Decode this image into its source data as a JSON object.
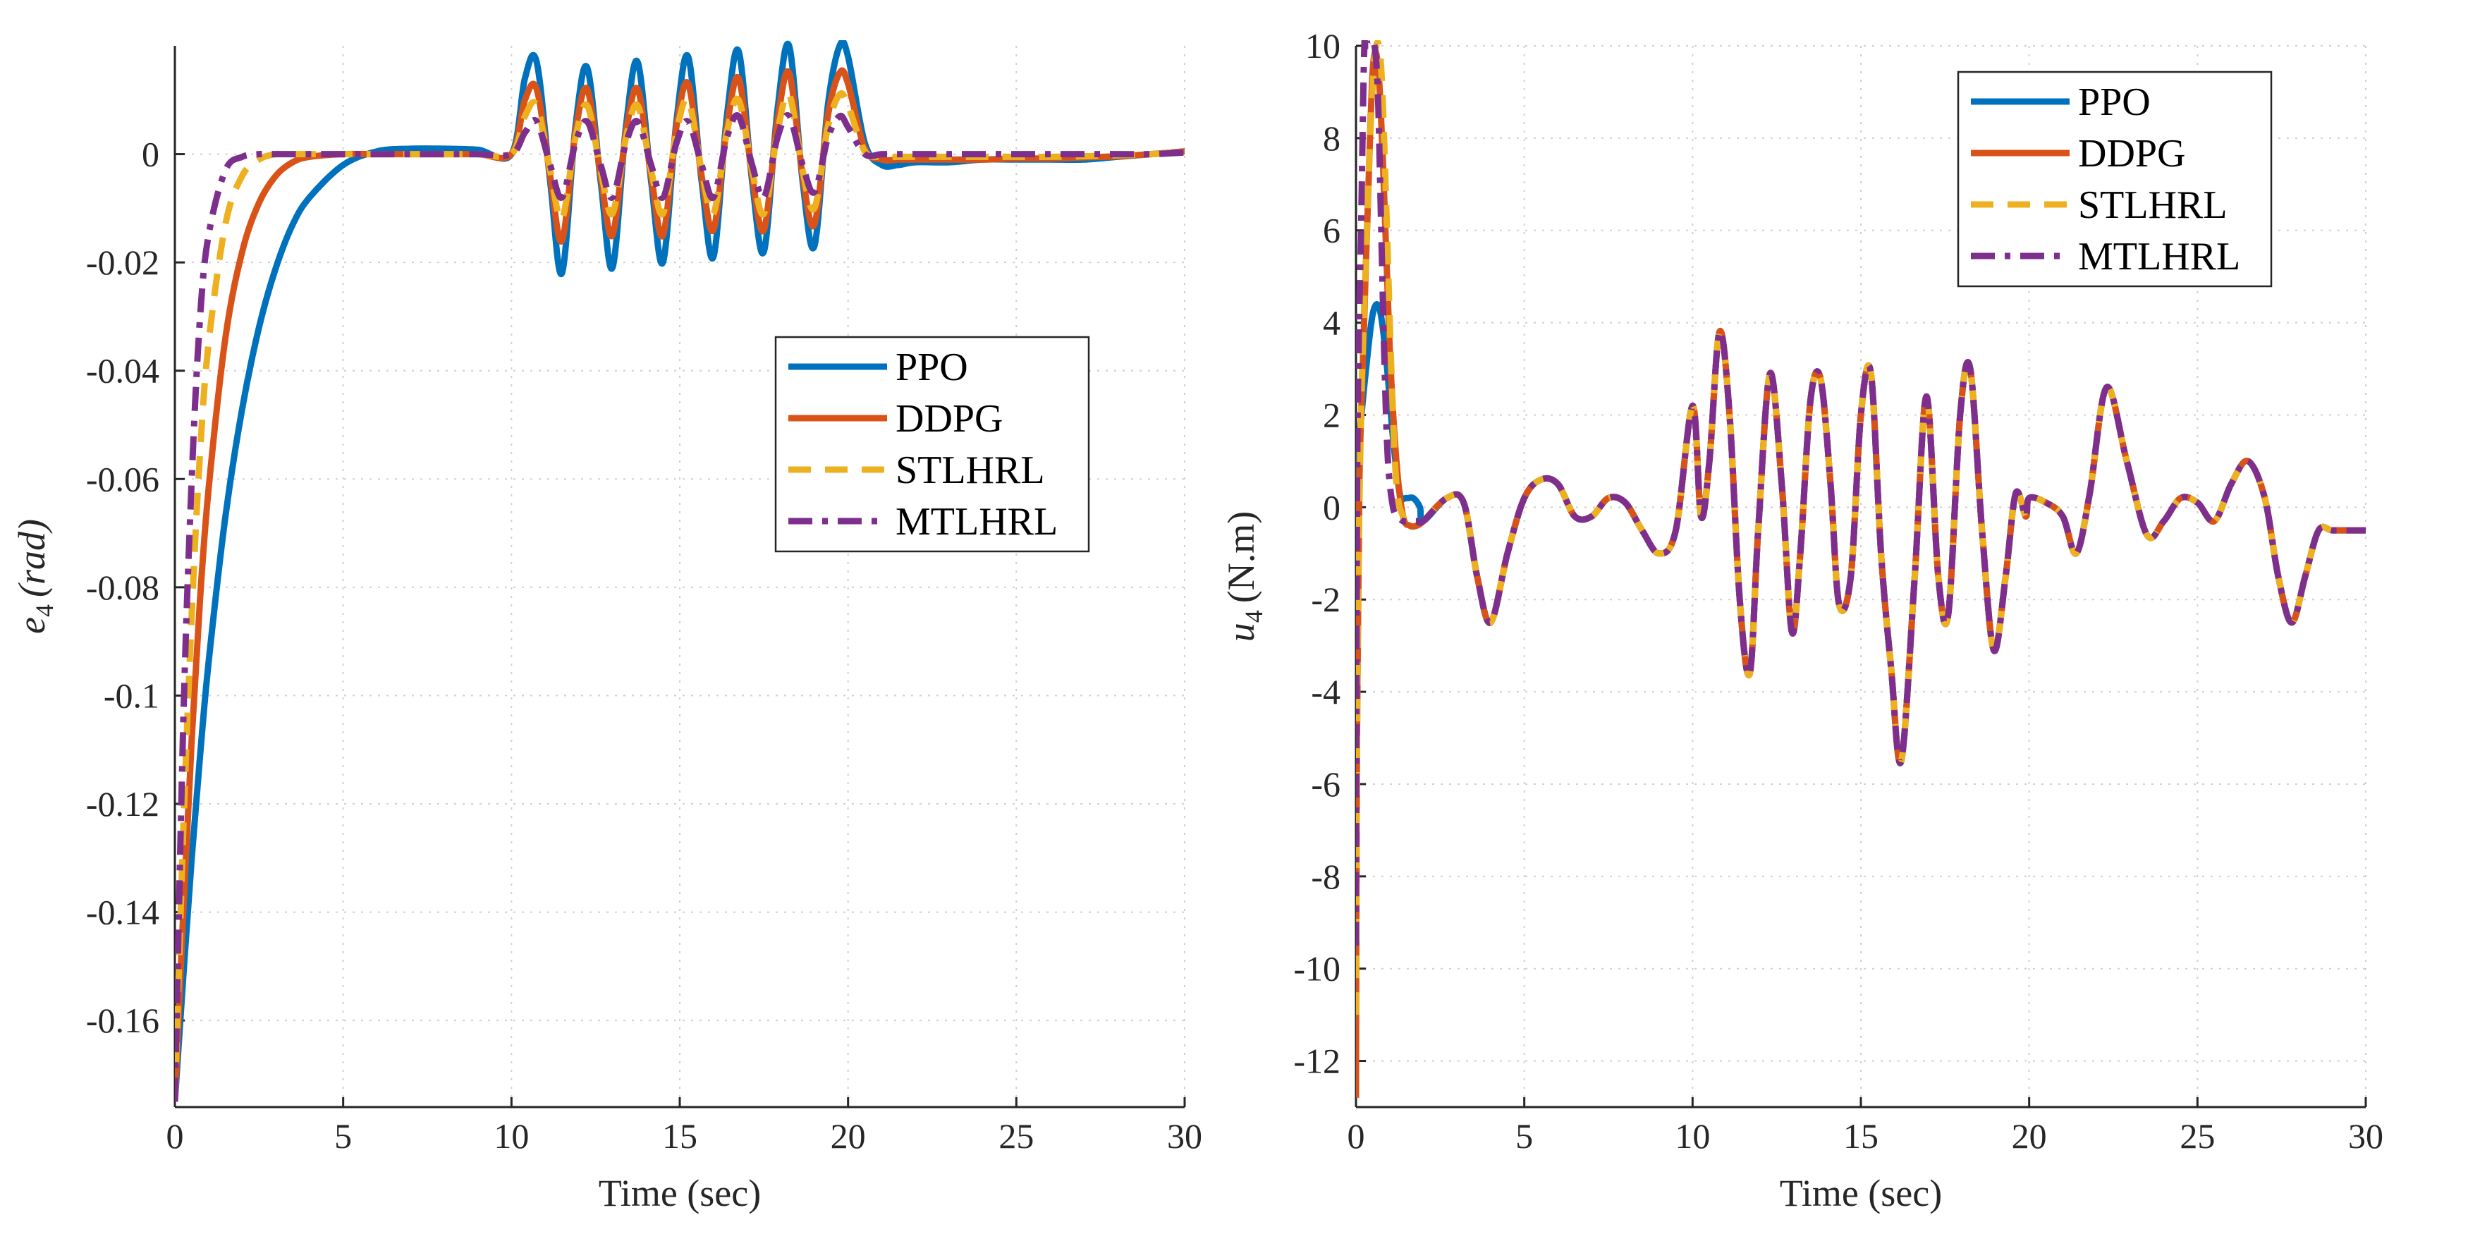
{
  "chart_data": [
    {
      "id": "error",
      "type": "line",
      "title": "",
      "xlabel": "Time (sec)",
      "ylabel_symbol": "e",
      "ylabel_subscript": "4",
      "ylabel_unit": "(rad)",
      "xlim": [
        0,
        30
      ],
      "ylim": [
        -0.176,
        0.02
      ],
      "x_ticks": [
        0,
        5,
        10,
        15,
        20,
        25,
        30
      ],
      "x_tick_labels": [
        "0",
        "5",
        "10",
        "15",
        "20",
        "25",
        "30"
      ],
      "y_ticks": [
        -0.16,
        -0.14,
        -0.12,
        -0.1,
        -0.08,
        -0.06,
        -0.04,
        -0.02,
        0
      ],
      "y_tick_labels": [
        "-0.16",
        "-0.14",
        "-0.12",
        "-0.1",
        "-0.08",
        "-0.06",
        "-0.04",
        "-0.02",
        "0"
      ],
      "grid": true,
      "legend_position": "center-right",
      "series": [
        {
          "name": "PPO",
          "color": "#0072BD",
          "dash": "solid",
          "x": [
            0,
            0.25,
            0.5,
            0.75,
            1,
            1.5,
            2,
            2.5,
            3,
            3.5,
            4,
            5,
            6,
            7,
            8,
            9,
            10,
            10.4,
            10.75,
            11.15,
            11.5,
            11.9,
            12.25,
            12.65,
            13,
            13.4,
            13.75,
            14.15,
            14.5,
            14.9,
            15.25,
            15.65,
            16,
            16.4,
            16.75,
            17.15,
            17.5,
            17.9,
            18.25,
            18.65,
            19,
            19.4,
            19.75,
            20,
            20.5,
            21,
            21.5,
            22,
            23,
            24,
            25,
            26,
            27,
            28,
            29,
            30
          ],
          "y": [
            -0.175,
            -0.152,
            -0.13,
            -0.111,
            -0.094,
            -0.067,
            -0.047,
            -0.032,
            -0.021,
            -0.013,
            -0.008,
            -0.002,
            0.0005,
            0.001,
            0.001,
            0.0008,
            0,
            0.014,
            0.017,
            -0.005,
            -0.022,
            0.005,
            0.016,
            -0.005,
            -0.021,
            0.005,
            0.017,
            -0.005,
            -0.02,
            0.006,
            0.018,
            -0.005,
            -0.019,
            0.007,
            0.019,
            -0.005,
            -0.018,
            0.008,
            0.02,
            -0.005,
            -0.017,
            0.009,
            0.02,
            0.018,
            0.002,
            -0.002,
            -0.002,
            -0.0015,
            -0.0015,
            -0.001,
            -0.001,
            -0.001,
            -0.001,
            -0.0005,
            0,
            0.0005
          ]
        },
        {
          "name": "DDPG",
          "color": "#D95319",
          "dash": "solid",
          "x": [
            0,
            0.25,
            0.5,
            0.75,
            1,
            1.5,
            2,
            2.5,
            3,
            3.5,
            4,
            5,
            6,
            7,
            8,
            9,
            10,
            10.4,
            10.75,
            11.15,
            11.5,
            11.9,
            12.25,
            12.65,
            13,
            13.4,
            13.75,
            14.15,
            14.5,
            14.9,
            15.25,
            15.65,
            16,
            16.4,
            16.75,
            17.15,
            17.5,
            17.9,
            18.25,
            18.65,
            19,
            19.4,
            19.75,
            20,
            20.5,
            21,
            21.5,
            22,
            23,
            24,
            25,
            26,
            27,
            28,
            29,
            30
          ],
          "y": [
            -0.175,
            -0.14,
            -0.108,
            -0.082,
            -0.062,
            -0.034,
            -0.018,
            -0.009,
            -0.004,
            -0.0015,
            -0.0005,
            0,
            0,
            0,
            0,
            0,
            0,
            0.01,
            0.012,
            -0.004,
            -0.016,
            0.004,
            0.012,
            -0.004,
            -0.015,
            0.004,
            0.012,
            -0.004,
            -0.015,
            0.005,
            0.013,
            -0.004,
            -0.014,
            0.005,
            0.014,
            -0.004,
            -0.014,
            0.006,
            0.015,
            -0.004,
            -0.013,
            0.007,
            0.015,
            0.013,
            0.001,
            -0.001,
            -0.001,
            -0.001,
            -0.001,
            -0.001,
            -0.0008,
            -0.0008,
            -0.0006,
            -0.0004,
            0,
            0.0005
          ]
        },
        {
          "name": "STLHRL",
          "color": "#EDB120",
          "dash": "dashed",
          "x": [
            0,
            0.25,
            0.5,
            0.75,
            1,
            1.5,
            2,
            2.5,
            3,
            3.5,
            4,
            5,
            6,
            7,
            8,
            9,
            10,
            10.4,
            10.75,
            11.15,
            11.5,
            11.9,
            12.25,
            12.65,
            13,
            13.4,
            13.75,
            14.15,
            14.5,
            14.9,
            15.25,
            15.65,
            16,
            16.4,
            16.75,
            17.15,
            17.5,
            17.9,
            18.25,
            18.65,
            19,
            19.4,
            19.75,
            20,
            20.5,
            21,
            21.5,
            22,
            23,
            24,
            25,
            26,
            27,
            28,
            29,
            30
          ],
          "y": [
            -0.175,
            -0.125,
            -0.085,
            -0.055,
            -0.035,
            -0.013,
            -0.004,
            -0.001,
            0,
            0,
            0,
            0,
            0,
            0,
            0,
            0,
            0,
            0.007,
            0.009,
            -0.003,
            -0.012,
            0.003,
            0.009,
            -0.003,
            -0.011,
            0.003,
            0.009,
            -0.003,
            -0.011,
            0.004,
            0.01,
            -0.003,
            -0.011,
            0.004,
            0.01,
            -0.003,
            -0.011,
            0.004,
            0.011,
            -0.003,
            -0.01,
            0.005,
            0.011,
            0.009,
            0.0005,
            -0.0005,
            -0.0005,
            -0.0005,
            -0.0005,
            -0.0005,
            -0.0005,
            -0.0005,
            -0.0004,
            -0.0002,
            0,
            0.0005
          ]
        },
        {
          "name": "MTLHRL",
          "color": "#7E2F8E",
          "dash": "dashdot",
          "x": [
            0,
            0.25,
            0.5,
            0.75,
            1,
            1.5,
            2,
            2.5,
            3,
            3.5,
            4,
            5,
            6,
            7,
            8,
            9,
            10,
            10.4,
            10.75,
            11.15,
            11.5,
            11.9,
            12.25,
            12.65,
            13,
            13.4,
            13.75,
            14.15,
            14.5,
            14.9,
            15.25,
            15.65,
            16,
            16.4,
            16.75,
            17.15,
            17.5,
            17.9,
            18.25,
            18.65,
            19,
            19.4,
            19.75,
            20,
            20.5,
            21,
            21.5,
            22,
            23,
            24,
            25,
            26,
            27,
            28,
            29,
            30
          ],
          "y": [
            -0.175,
            -0.105,
            -0.06,
            -0.03,
            -0.015,
            -0.003,
            -0.0005,
            0,
            0,
            0,
            0,
            0,
            0,
            0,
            0,
            0,
            0,
            0.004,
            0.006,
            -0.002,
            -0.008,
            0.002,
            0.006,
            -0.002,
            -0.008,
            0.002,
            0.006,
            -0.002,
            -0.008,
            0.002,
            0.006,
            -0.002,
            -0.008,
            0.003,
            0.007,
            -0.002,
            -0.008,
            0.003,
            0.007,
            -0.002,
            -0.007,
            0.003,
            0.007,
            0.005,
            0,
            0,
            0,
            0,
            0,
            0,
            0,
            0,
            0,
            0,
            0,
            0.0003
          ]
        }
      ]
    },
    {
      "id": "control",
      "type": "line",
      "title": "",
      "xlabel": "Time (sec)",
      "ylabel_symbol": "u",
      "ylabel_subscript": "4",
      "ylabel_unit": "(N.m)",
      "xlim": [
        0,
        30
      ],
      "ylim": [
        -13,
        10
      ],
      "x_ticks": [
        0,
        5,
        10,
        15,
        20,
        25,
        30
      ],
      "x_tick_labels": [
        "0",
        "5",
        "10",
        "15",
        "20",
        "25",
        "30"
      ],
      "y_ticks": [
        -12,
        -10,
        -8,
        -6,
        -4,
        -2,
        0,
        2,
        4,
        6,
        8,
        10
      ],
      "y_tick_labels": [
        "-12",
        "-10",
        "-8",
        "-6",
        "-4",
        "-2",
        "0",
        "2",
        "4",
        "6",
        "8",
        "10"
      ],
      "grid": true,
      "legend_position": "top-right",
      "shared_tail": {
        "x": [
          2,
          2.7,
          3.2,
          3.6,
          4,
          4.5,
          5,
          5.5,
          6,
          6.5,
          7,
          7.5,
          8,
          8.5,
          9,
          9.5,
          10,
          10.25,
          10.5,
          10.8,
          11.1,
          11.4,
          11.7,
          11.95,
          12.3,
          12.65,
          12.95,
          13.2,
          13.5,
          13.8,
          14.1,
          14.35,
          14.7,
          15,
          15.3,
          15.6,
          15.9,
          16.2,
          16.6,
          16.95,
          17.3,
          17.6,
          17.95,
          18.25,
          18.6,
          18.95,
          19.3,
          19.6,
          19.9,
          20,
          20.5,
          21,
          21.4,
          21.8,
          22.3,
          22.9,
          23.5,
          24,
          24.5,
          25,
          25.5,
          26,
          26.5,
          27,
          27.4,
          27.8,
          28.2,
          28.6,
          29,
          29.5,
          30
        ],
        "y": [
          -0.3,
          0.2,
          0.1,
          -1.5,
          -2.5,
          -1,
          0.2,
          0.6,
          0.5,
          -0.2,
          -0.2,
          0.2,
          0.1,
          -0.5,
          -1,
          -0.5,
          2.2,
          -0.2,
          1,
          3.8,
          2,
          -2,
          -3.6,
          -0.5,
          2.9,
          0.5,
          -2.7,
          -1,
          2.3,
          2.8,
          0.5,
          -2.1,
          -1.5,
          2,
          2.9,
          -1,
          -3.5,
          -5.5,
          -1.5,
          2.4,
          -1.5,
          -2.3,
          2,
          3,
          -0.5,
          -3.1,
          -1.5,
          0.3,
          -0.2,
          0.2,
          0.1,
          -0.2,
          -1,
          0.3,
          2.6,
          1,
          -0.6,
          -0.3,
          0.2,
          0.1,
          -0.3,
          0.5,
          1,
          0.2,
          -1.5,
          -2.5,
          -1.5,
          -0.5,
          -0.5,
          -0.5,
          -0.5
        ]
      },
      "series": [
        {
          "name": "PPO",
          "color": "#0072BD",
          "dash": "solid",
          "x": [
            0,
            0.1,
            0.3,
            0.5,
            0.7,
            0.9,
            1.1,
            1.3,
            1.5,
            1.7,
            1.9
          ],
          "y": [
            0.5,
            1.5,
            3,
            4.2,
            4.3,
            3.2,
            1.5,
            0.3,
            0.2,
            0.2,
            0
          ]
        },
        {
          "name": "DDPG",
          "color": "#D95319",
          "dash": "solid",
          "x": [
            0,
            0.03,
            0.1,
            0.2,
            0.35,
            0.5,
            0.65,
            0.8,
            1,
            1.2,
            1.4,
            1.6,
            1.8
          ],
          "y": [
            -12.8,
            -5,
            0.5,
            3,
            6.5,
            9.5,
            9.6,
            7.5,
            3.5,
            1,
            -0.2,
            -0.4,
            -0.4
          ]
        },
        {
          "name": "STLHRL",
          "color": "#EDB120",
          "dash": "dashed",
          "x": [
            0,
            0.05,
            0.15,
            0.3,
            0.45,
            0.6,
            0.75,
            0.9,
            1.05,
            1.2,
            1.4,
            1.6,
            1.8
          ],
          "y": [
            -11,
            -3,
            2,
            5.5,
            8.5,
            10,
            9.5,
            6.5,
            3,
            0.5,
            -0.2,
            -0.3,
            -0.3
          ]
        },
        {
          "name": "MTLHRL",
          "color": "#7E2F8E",
          "dash": "dashdot",
          "x": [
            0,
            0.03,
            0.08,
            0.15,
            0.25,
            0.35,
            0.45,
            0.55,
            0.65,
            0.75,
            0.85,
            0.95,
            1.1,
            1.25,
            1.4,
            1.6,
            1.8
          ],
          "y": [
            -9.5,
            0,
            3.5,
            6,
            10,
            10,
            10,
            10,
            9,
            6,
            3,
            1,
            0,
            -0.2,
            -0.3,
            -0.3,
            -0.3
          ]
        }
      ]
    }
  ]
}
